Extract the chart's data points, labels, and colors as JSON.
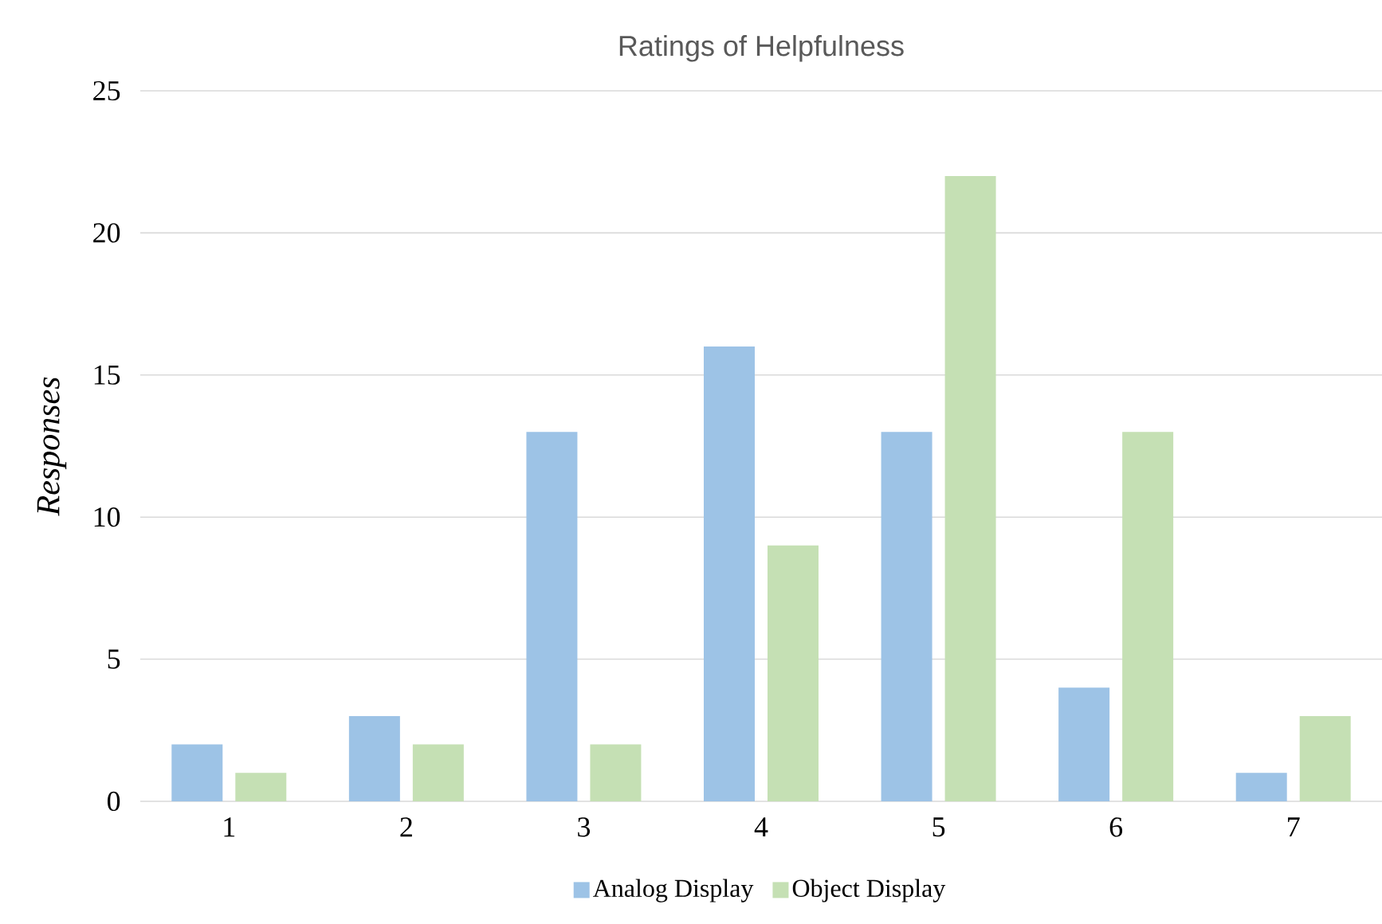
{
  "chart_data": {
    "type": "bar",
    "title": "Ratings of Helpfulness",
    "ylabel": "Responses",
    "categories": [
      "1",
      "2",
      "3",
      "4",
      "5",
      "6",
      "7"
    ],
    "series": [
      {
        "name": "Analog Display",
        "color": "#9dc3e6",
        "values": [
          2,
          3,
          13,
          16,
          13,
          4,
          1
        ]
      },
      {
        "name": "Object Display",
        "color": "#c5e0b4",
        "values": [
          1,
          2,
          2,
          9,
          22,
          13,
          3
        ]
      }
    ],
    "ylim": [
      0,
      25
    ],
    "yticks": [
      0,
      5,
      10,
      15,
      20,
      25
    ],
    "grid": "y",
    "legend": "bottom"
  }
}
